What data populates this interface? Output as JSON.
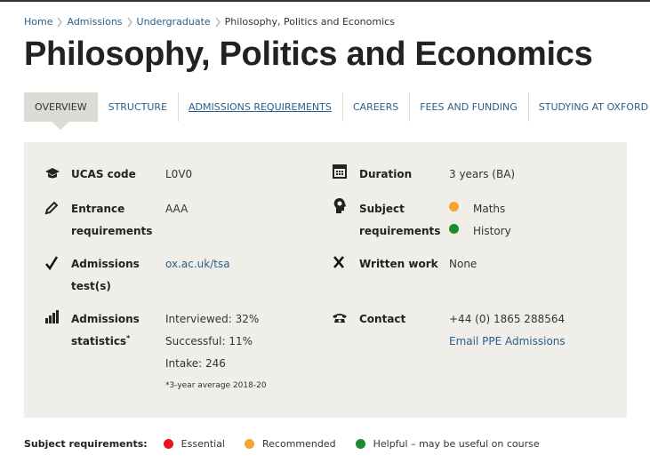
{
  "breadcrumb": [
    "Home",
    "Admissions",
    "Undergraduate",
    "Philosophy, Politics and Economics"
  ],
  "title": "Philosophy, Politics and Economics",
  "tabs": [
    {
      "label": "OVERVIEW",
      "selected": true
    },
    {
      "label": "STRUCTURE",
      "selected": false
    },
    {
      "label": "ADMISSIONS REQUIREMENTS",
      "selected": false,
      "underlined": true
    },
    {
      "label": "CAREERS",
      "selected": false
    },
    {
      "label": "FEES AND FUNDING",
      "selected": false
    },
    {
      "label": "STUDYING AT OXFORD",
      "selected": false
    }
  ],
  "facts": {
    "ucas": {
      "label": "UCAS code",
      "value": "L0V0"
    },
    "entrance": {
      "label": "Entrance requirements",
      "value": "AAA"
    },
    "test": {
      "label": "Admissions test(s)",
      "link": "ox.ac.uk/tsa"
    },
    "stats": {
      "label": "Admissions statistics",
      "marker": "*",
      "values": [
        "Interviewed: 32%",
        "Successful: 11%",
        "Intake: 246"
      ],
      "note": "*3-year average 2018-20"
    },
    "duration": {
      "label": "Duration",
      "value": "3 years (BA)"
    },
    "subjects": {
      "label": "Subject requirements",
      "items": [
        {
          "name": "Maths",
          "color": "#f5a531"
        },
        {
          "name": "History",
          "color": "#1f8a2e"
        }
      ]
    },
    "written": {
      "label": "Written work",
      "value": "None"
    },
    "contact": {
      "label": "Contact",
      "value": "+44 (0) 1865 288564",
      "link": "Email PPE Admissions"
    }
  },
  "legend": {
    "title": "Subject requirements:",
    "items": [
      {
        "label": "Essential",
        "color": "#e8141c"
      },
      {
        "label": "Recommended",
        "color": "#f5a531"
      },
      {
        "label": "Helpful – may be useful on course",
        "color": "#1f8a2e"
      }
    ]
  }
}
